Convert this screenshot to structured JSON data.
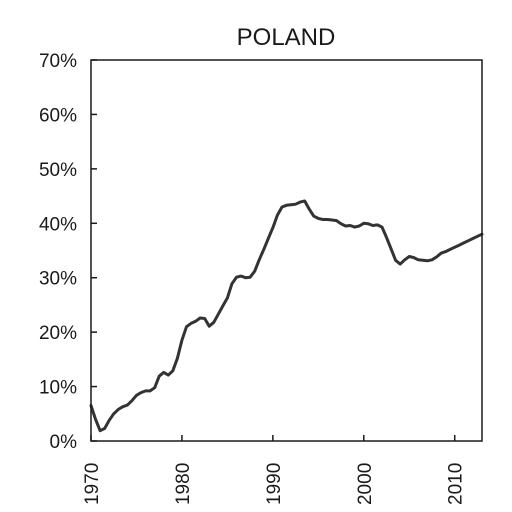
{
  "chart_data": {
    "type": "line",
    "title": "POLAND",
    "xlabel": "",
    "ylabel": "",
    "xlim": [
      1970,
      2013
    ],
    "ylim": [
      0,
      70
    ],
    "x_ticks": [
      1970,
      1980,
      1990,
      2000,
      2010
    ],
    "x_tick_labels": [
      "1970",
      "1980",
      "1990",
      "2000",
      "2010"
    ],
    "y_ticks": [
      0,
      10,
      20,
      30,
      40,
      50,
      60,
      70
    ],
    "y_tick_labels": [
      "0%",
      "10%",
      "20%",
      "30%",
      "40%",
      "50%",
      "60%",
      "70%"
    ],
    "grid": false,
    "legend": "none",
    "line_color": "#333333",
    "series": [
      {
        "x": [
          1970,
          1970.5,
          1971,
          1971.5,
          1972,
          1972.5,
          1973,
          1973.5,
          1974,
          1974.5,
          1975,
          1975.5,
          1976,
          1976.5,
          1977,
          1977.5,
          1978,
          1978.5,
          1979,
          1979.5,
          1980,
          1980.5,
          1981,
          1981.5,
          1982,
          1982.5,
          1983,
          1983.5,
          1984,
          1984.5,
          1985,
          1985.5,
          1986,
          1986.5,
          1987,
          1987.5,
          1988,
          1988.5,
          1989,
          1989.5,
          1990,
          1990.5,
          1991,
          1991.5,
          1992,
          1992.5,
          1993,
          1993.5,
          1994,
          1994.5,
          1995,
          1995.5,
          1996,
          1996.5,
          1997,
          1997.5,
          1998,
          1998.5,
          1999,
          1999.5,
          2000,
          2000.5,
          2001,
          2001.5,
          2002,
          2002.5,
          2003,
          2003.5,
          2004,
          2004.5,
          2005,
          2005.5,
          2006,
          2006.5,
          2007,
          2007.5,
          2008,
          2008.5,
          2009,
          2009.5,
          2010,
          2010.5,
          2011,
          2011.5,
          2012,
          2012.5,
          2013
        ],
        "y": [
          6.5,
          4.0,
          1.9,
          2.3,
          3.8,
          5.0,
          5.8,
          6.3,
          6.6,
          7.4,
          8.4,
          8.9,
          9.2,
          9.2,
          9.8,
          11.9,
          12.6,
          12.1,
          12.9,
          15.2,
          18.5,
          21.0,
          21.6,
          22.0,
          22.6,
          22.5,
          21.1,
          21.8,
          23.3,
          24.8,
          26.3,
          28.9,
          30.1,
          30.3,
          30.0,
          30.1,
          31.2,
          33.3,
          35.2,
          37.2,
          39.2,
          41.5,
          43.0,
          43.3,
          43.4,
          43.5,
          43.9,
          44.1,
          42.6,
          41.3,
          40.9,
          40.7,
          40.7,
          40.6,
          40.5,
          39.9,
          39.5,
          39.6,
          39.3,
          39.5,
          40.0,
          39.9,
          39.6,
          39.7,
          39.3,
          37.4,
          35.3,
          33.2,
          32.5,
          33.3,
          33.9,
          33.7,
          33.3,
          33.2,
          33.1,
          33.3,
          33.8,
          34.5,
          34.8,
          35.2,
          35.6,
          36.0,
          36.4,
          36.8,
          37.2,
          37.6,
          38.0
        ]
      }
    ]
  }
}
